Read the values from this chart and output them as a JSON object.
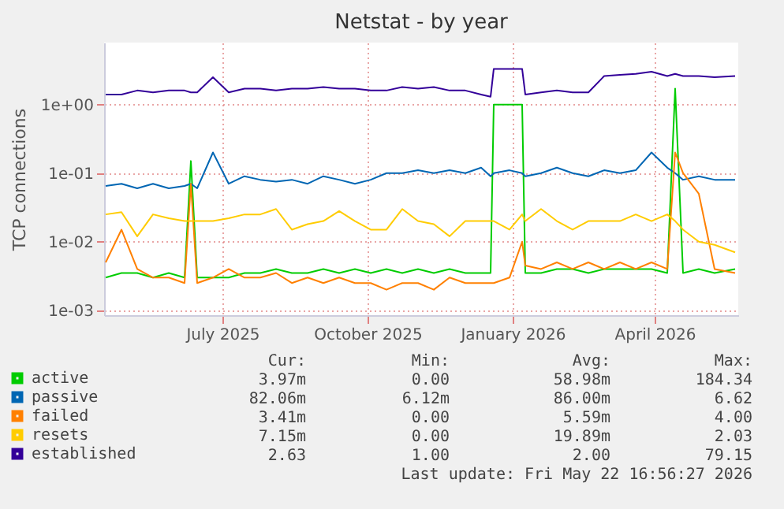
{
  "chart_data": {
    "type": "line",
    "title": "Netstat - by year",
    "ylabel": "TCP connections",
    "log": "y",
    "grid": true,
    "legend": "bottom",
    "marker": "none",
    "line_style": "solid",
    "x": [
      "2025-04-18",
      "2025-04-28",
      "2025-05-08",
      "2025-05-18",
      "2025-05-28",
      "2025-06-07",
      "2025-06-11",
      "2025-06-15",
      "2025-06-25",
      "2025-07-05",
      "2025-07-15",
      "2025-07-25",
      "2025-08-04",
      "2025-08-14",
      "2025-08-24",
      "2025-09-03",
      "2025-09-13",
      "2025-09-23",
      "2025-10-03",
      "2025-10-13",
      "2025-10-23",
      "2025-11-02",
      "2025-11-12",
      "2025-11-22",
      "2025-12-02",
      "2025-12-12",
      "2025-12-18",
      "2025-12-20",
      "2025-12-30",
      "2026-01-07",
      "2026-01-09",
      "2026-01-19",
      "2026-01-29",
      "2026-02-08",
      "2026-02-18",
      "2026-02-28",
      "2026-03-10",
      "2026-03-20",
      "2026-03-30",
      "2026-04-09",
      "2026-04-14",
      "2026-04-19",
      "2026-04-29",
      "2026-05-09",
      "2026-05-22"
    ],
    "xlim": [
      "2025-04-17",
      "2026-05-24"
    ],
    "xticks": [
      {
        "value": "2025-07-01",
        "label": "July 2025"
      },
      {
        "value": "2025-10-01",
        "label": "October 2025"
      },
      {
        "value": "2026-01-01",
        "label": "January 2026"
      },
      {
        "value": "2026-04-01",
        "label": "April 2026"
      }
    ],
    "ylim": [
      0.00085,
      8
    ],
    "yticks": [
      {
        "value": 0.001,
        "label": "1e-03"
      },
      {
        "value": 0.01,
        "label": "1e-02"
      },
      {
        "value": 0.1,
        "label": "1e-01"
      },
      {
        "value": 1,
        "label": "1e+00"
      }
    ],
    "series": [
      {
        "name": "active",
        "color": "#00cc00",
        "values": [
          0.003,
          0.0035,
          0.0035,
          0.003,
          0.0035,
          0.003,
          0.15,
          0.003,
          0.003,
          0.003,
          0.0035,
          0.0035,
          0.004,
          0.0035,
          0.0035,
          0.004,
          0.0035,
          0.004,
          0.0035,
          0.004,
          0.0035,
          0.004,
          0.0035,
          0.004,
          0.0035,
          0.0035,
          0.0035,
          1.0,
          1.0,
          1.0,
          0.0035,
          0.0035,
          0.004,
          0.004,
          0.0035,
          0.004,
          0.004,
          0.004,
          0.004,
          0.0035,
          1.7,
          0.0035,
          0.004,
          0.0035,
          0.004
        ]
      },
      {
        "name": "passive",
        "color": "#0066b3",
        "values": [
          0.065,
          0.07,
          0.06,
          0.07,
          0.06,
          0.065,
          0.07,
          0.06,
          0.2,
          0.07,
          0.09,
          0.08,
          0.075,
          0.08,
          0.07,
          0.09,
          0.08,
          0.07,
          0.08,
          0.1,
          0.1,
          0.11,
          0.1,
          0.11,
          0.1,
          0.12,
          0.09,
          0.1,
          0.11,
          0.1,
          0.09,
          0.1,
          0.12,
          0.1,
          0.09,
          0.11,
          0.1,
          0.11,
          0.2,
          0.12,
          0.1,
          0.08,
          0.09,
          0.08,
          0.08
        ]
      },
      {
        "name": "failed",
        "color": "#ff8000",
        "values": [
          0.005,
          0.015,
          0.004,
          0.003,
          0.003,
          0.0025,
          0.07,
          0.0025,
          0.003,
          0.004,
          0.003,
          0.003,
          0.0035,
          0.0025,
          0.003,
          0.0025,
          0.003,
          0.0025,
          0.0025,
          0.002,
          0.0025,
          0.0025,
          0.002,
          0.003,
          0.0025,
          0.0025,
          0.0025,
          0.0025,
          0.003,
          0.01,
          0.0045,
          0.004,
          0.005,
          0.004,
          0.005,
          0.004,
          0.005,
          0.004,
          0.005,
          0.004,
          0.2,
          0.1,
          0.05,
          0.004,
          0.0035
        ]
      },
      {
        "name": "resets",
        "color": "#ffcc00",
        "values": [
          0.025,
          0.027,
          0.012,
          0.025,
          0.022,
          0.02,
          0.02,
          0.02,
          0.02,
          0.022,
          0.025,
          0.025,
          0.03,
          0.015,
          0.018,
          0.02,
          0.028,
          0.02,
          0.015,
          0.015,
          0.03,
          0.02,
          0.018,
          0.012,
          0.02,
          0.02,
          0.02,
          0.02,
          0.015,
          0.025,
          0.02,
          0.03,
          0.02,
          0.015,
          0.02,
          0.02,
          0.02,
          0.025,
          0.02,
          0.025,
          0.02,
          0.015,
          0.01,
          0.009,
          0.007
        ]
      },
      {
        "name": "established",
        "color": "#330099",
        "values": [
          1.4,
          1.4,
          1.6,
          1.5,
          1.6,
          1.6,
          1.5,
          1.5,
          2.5,
          1.5,
          1.7,
          1.7,
          1.6,
          1.7,
          1.7,
          1.8,
          1.7,
          1.7,
          1.6,
          1.6,
          1.8,
          1.7,
          1.8,
          1.6,
          1.6,
          1.4,
          1.3,
          3.3,
          3.3,
          3.3,
          1.4,
          1.5,
          1.6,
          1.5,
          1.5,
          2.6,
          2.7,
          2.8,
          3.0,
          2.6,
          2.8,
          2.6,
          2.6,
          2.5,
          2.6
        ]
      }
    ],
    "annotations": [
      "Cur:",
      "Min:",
      "Avg:",
      "Max:",
      "3.97m",
      "0.00",
      "58.98m",
      "184.34",
      "82.06m",
      "6.12m",
      "86.00m",
      "6.62",
      "3.41m",
      "0.00",
      "5.59m",
      "4.00",
      "7.15m",
      "0.00",
      "19.89m",
      "2.03",
      "2.63",
      "1.00",
      "2.00",
      "79.15",
      "Last update: Fri May 22 16:56:27 2026"
    ]
  }
}
